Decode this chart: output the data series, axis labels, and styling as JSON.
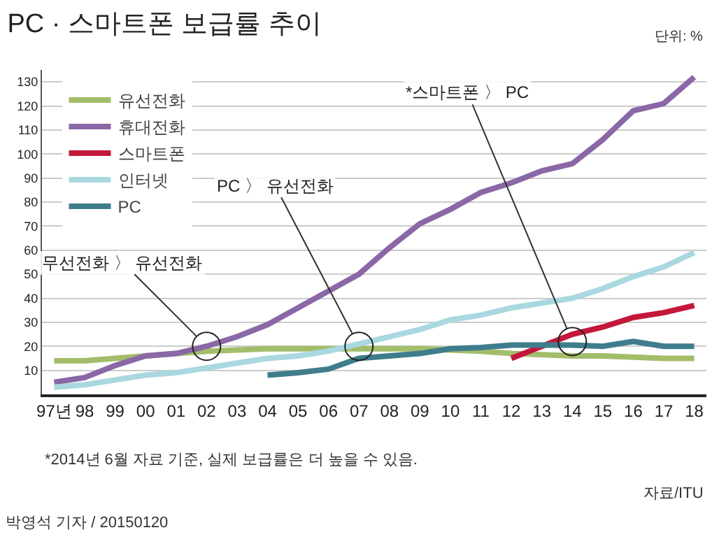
{
  "chart_data": {
    "type": "line",
    "title": "PC · 스마트폰 보급률 추이",
    "categories": [
      "97년",
      "98",
      "99",
      "00",
      "01",
      "02",
      "03",
      "04",
      "05",
      "06",
      "07",
      "08",
      "09",
      "10",
      "11",
      "12",
      "13",
      "14",
      "15",
      "16",
      "17",
      "18"
    ],
    "series": [
      {
        "name": "유선전화",
        "color": "#a3bd6a",
        "values": [
          14,
          14,
          15,
          16,
          17,
          18,
          18.5,
          19,
          19,
          19,
          19,
          19,
          19,
          18.5,
          18,
          17,
          16.5,
          16,
          16,
          15.5,
          15,
          15
        ]
      },
      {
        "name": "휴대전화",
        "color": "#8a67a6",
        "values": [
          5,
          7,
          12,
          16,
          17,
          20,
          24,
          29,
          36,
          43,
          50,
          61,
          71,
          77,
          84,
          88,
          93,
          96,
          106,
          118,
          121,
          132
        ]
      },
      {
        "name": "스마트폰",
        "color": "#c3183a",
        "values": [
          null,
          null,
          null,
          null,
          null,
          null,
          null,
          null,
          null,
          null,
          null,
          null,
          null,
          null,
          null,
          15,
          20,
          25,
          28,
          32,
          34,
          37
        ]
      },
      {
        "name": "인터넷",
        "color": "#a9d8e0",
        "values": [
          3,
          4,
          6,
          8,
          9,
          11,
          13,
          15,
          16,
          18,
          21,
          24,
          27,
          31,
          33,
          36,
          38,
          40,
          44,
          49,
          53,
          59
        ]
      },
      {
        "name": "PC",
        "color": "#3f7d8c",
        "values": [
          null,
          null,
          null,
          null,
          null,
          null,
          null,
          8,
          9,
          10.5,
          15,
          16,
          17,
          19,
          19.5,
          20.5,
          20.5,
          20.5,
          20,
          22,
          20,
          20
        ]
      }
    ],
    "ylim": [
      0,
      135
    ],
    "yticks": [
      10,
      20,
      30,
      40,
      50,
      60,
      70,
      80,
      90,
      100,
      110,
      120,
      130
    ],
    "grid": "y",
    "legend": "top left",
    "marker": "none",
    "line_style": "solid",
    "annotations": [
      {
        "text": "무선전화 〉 유선전화",
        "x": "02",
        "y": 20
      },
      {
        "text": "PC 〉 유선전화",
        "x": "07",
        "y": 20
      },
      {
        "text": "*스마트폰 〉 PC",
        "x": "14",
        "y": 22
      },
      "단위: %",
      "*2014년 6월 자료 기준, 실제 보급률은 더 높을 수 있음.",
      "자료/ITU",
      "박영석 기자 / 20150120"
    ]
  }
}
